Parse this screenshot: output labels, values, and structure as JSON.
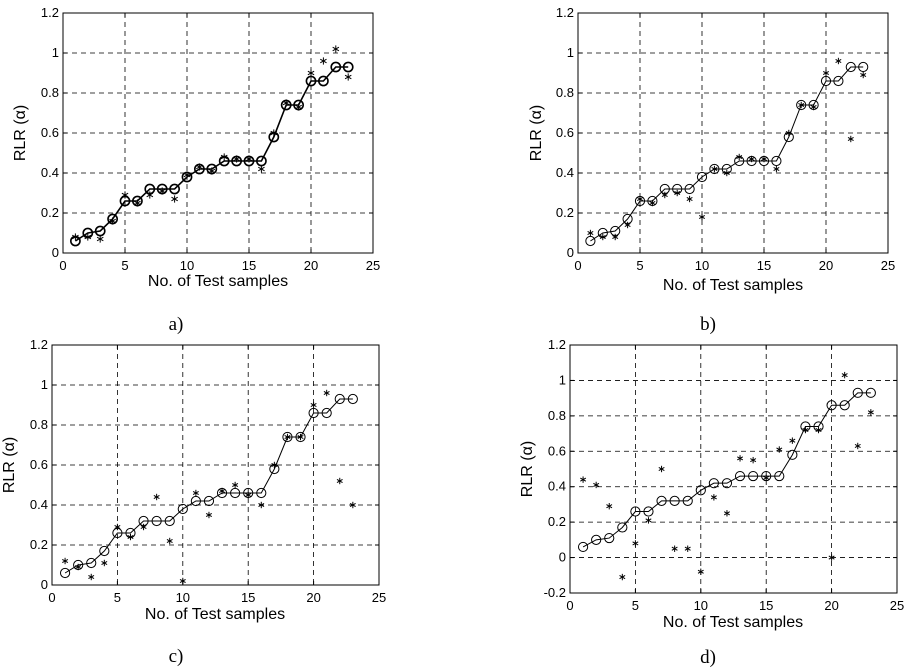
{
  "chart_data": [
    {
      "type": "line",
      "panel_label": "a)",
      "xlabel": "No. of Test samples",
      "ylabel": "RLR (α)",
      "xlim": [
        0,
        25
      ],
      "ylim": [
        0,
        1.2
      ],
      "xticks": [
        "0",
        "5",
        "10",
        "15",
        "20",
        "25"
      ],
      "yticks": [
        "0",
        "0.2",
        "0.4",
        "0.6",
        "0.8",
        "1",
        "1.2"
      ],
      "grid": true,
      "x": [
        1,
        2,
        3,
        4,
        5,
        6,
        7,
        8,
        9,
        10,
        11,
        12,
        13,
        14,
        15,
        16,
        17,
        18,
        19,
        20,
        21,
        22,
        23
      ],
      "series": [
        {
          "marker": "o",
          "line": true,
          "values": [
            0.06,
            0.1,
            0.11,
            0.17,
            0.26,
            0.26,
            0.32,
            0.32,
            0.32,
            0.38,
            0.42,
            0.42,
            0.46,
            0.46,
            0.46,
            0.46,
            0.58,
            0.74,
            0.74,
            0.86,
            0.86,
            0.93,
            0.93
          ]
        },
        {
          "marker": "*",
          "line": false,
          "values": [
            0.08,
            0.08,
            0.07,
            0.16,
            0.29,
            0.25,
            0.29,
            0.31,
            0.27,
            0.39,
            0.43,
            0.41,
            0.48,
            0.47,
            0.47,
            0.42,
            0.6,
            0.75,
            0.73,
            0.9,
            0.96,
            1.02,
            0.88
          ]
        }
      ]
    },
    {
      "type": "line",
      "panel_label": "b)",
      "xlabel": "No. of Test samples",
      "ylabel": "RLR (α)",
      "xlim": [
        0,
        25
      ],
      "ylim": [
        0,
        1.2
      ],
      "xticks": [
        "0",
        "5",
        "10",
        "15",
        "20",
        "25"
      ],
      "yticks": [
        "0",
        "0.2",
        "0.4",
        "0.6",
        "0.8",
        "1",
        "1.2"
      ],
      "grid": true,
      "x": [
        1,
        2,
        3,
        4,
        5,
        6,
        7,
        8,
        9,
        10,
        11,
        12,
        13,
        14,
        15,
        16,
        17,
        18,
        19,
        20,
        21,
        22,
        23
      ],
      "series": [
        {
          "marker": "o",
          "line": true,
          "values": [
            0.06,
            0.1,
            0.11,
            0.17,
            0.26,
            0.26,
            0.32,
            0.32,
            0.32,
            0.38,
            0.42,
            0.42,
            0.46,
            0.46,
            0.46,
            0.46,
            0.58,
            0.74,
            0.74,
            0.86,
            0.86,
            0.93,
            0.93
          ]
        },
        {
          "marker": "*",
          "line": false,
          "values": [
            0.1,
            0.08,
            0.08,
            0.14,
            0.27,
            0.25,
            0.29,
            0.3,
            0.27,
            0.18,
            0.42,
            0.4,
            0.48,
            0.47,
            0.47,
            0.42,
            0.6,
            0.74,
            0.73,
            0.9,
            0.96,
            0.57,
            0.89
          ]
        }
      ]
    },
    {
      "type": "line",
      "panel_label": "c)",
      "xlabel": "No. of Test samples",
      "ylabel": "RLR (α)",
      "xlim": [
        0,
        25
      ],
      "ylim": [
        0,
        1.2
      ],
      "xticks": [
        "0",
        "5",
        "10",
        "15",
        "20",
        "25"
      ],
      "yticks": [
        "0",
        "0.2",
        "0.4",
        "0.6",
        "0.8",
        "1",
        "1.2"
      ],
      "grid": true,
      "x": [
        1,
        2,
        3,
        4,
        5,
        6,
        7,
        8,
        9,
        10,
        11,
        12,
        13,
        14,
        15,
        16,
        17,
        18,
        19,
        20,
        21,
        22,
        23
      ],
      "series": [
        {
          "marker": "o",
          "line": true,
          "values": [
            0.06,
            0.1,
            0.11,
            0.17,
            0.26,
            0.26,
            0.32,
            0.32,
            0.32,
            0.38,
            0.42,
            0.42,
            0.46,
            0.46,
            0.46,
            0.46,
            0.58,
            0.74,
            0.74,
            0.86,
            0.86,
            0.93,
            0.93
          ]
        },
        {
          "marker": "*",
          "line": false,
          "values": [
            0.12,
            0.09,
            0.04,
            0.11,
            0.29,
            0.24,
            0.29,
            0.44,
            0.22,
            0.02,
            0.46,
            0.35,
            0.47,
            0.5,
            0.45,
            0.4,
            0.6,
            0.74,
            0.74,
            0.9,
            0.96,
            0.52,
            0.4
          ]
        }
      ]
    },
    {
      "type": "line",
      "panel_label": "d)",
      "xlabel": "No. of Test samples",
      "ylabel": "RLR (α)",
      "xlim": [
        0,
        25
      ],
      "ylim": [
        -0.2,
        1.2
      ],
      "xticks": [
        "0",
        "5",
        "10",
        "15",
        "20",
        "25"
      ],
      "yticks": [
        "-0.2",
        "0",
        "0.2",
        "0.4",
        "0.6",
        "0.8",
        "1",
        "1.2"
      ],
      "grid": true,
      "x": [
        1,
        2,
        3,
        4,
        5,
        6,
        7,
        8,
        9,
        10,
        11,
        12,
        13,
        14,
        15,
        16,
        17,
        18,
        19,
        20,
        21,
        22,
        23
      ],
      "series": [
        {
          "marker": "o",
          "line": true,
          "values": [
            0.06,
            0.1,
            0.11,
            0.17,
            0.26,
            0.26,
            0.32,
            0.32,
            0.32,
            0.38,
            0.42,
            0.42,
            0.46,
            0.46,
            0.46,
            0.46,
            0.58,
            0.74,
            0.74,
            0.86,
            0.86,
            0.93,
            0.93
          ]
        },
        {
          "marker": "*",
          "line": false,
          "values": [
            0.44,
            0.41,
            0.29,
            -0.11,
            0.08,
            0.21,
            0.5,
            0.05,
            0.05,
            -0.08,
            0.34,
            0.25,
            0.56,
            0.55,
            0.45,
            0.61,
            0.66,
            0.72,
            0.72,
            0.0,
            1.03,
            0.63,
            0.82
          ]
        }
      ]
    }
  ]
}
